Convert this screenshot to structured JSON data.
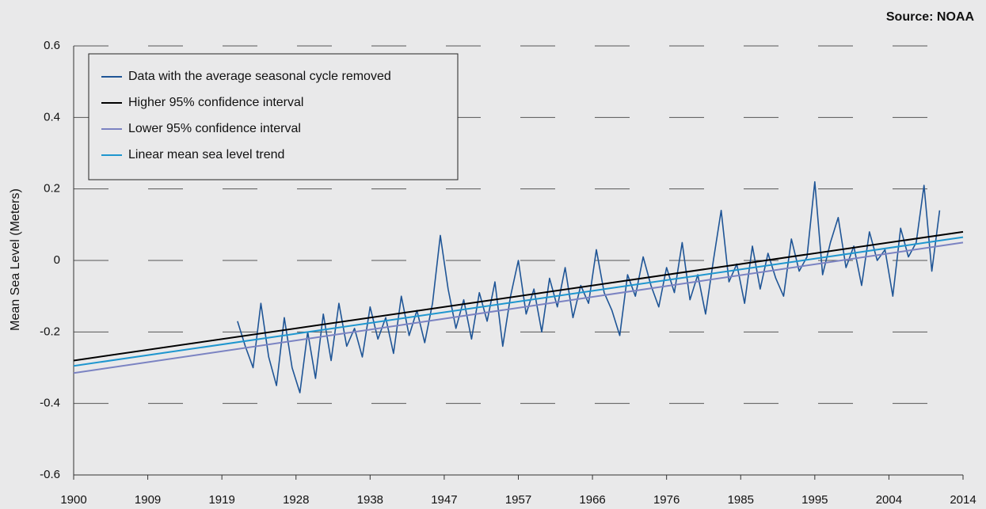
{
  "chart_data": {
    "type": "line",
    "source": "Source:  NOAA",
    "y_label": "Mean Sea Level (Meters)",
    "xlim": [
      1900,
      2014
    ],
    "xticks": [
      1900,
      {
        "value": 1909.5,
        "label": "1909"
      },
      1919,
      {
        "value": 1928.5,
        "label": "1928"
      },
      1938,
      {
        "value": 1947.5,
        "label": "1947"
      },
      1957,
      {
        "value": 1966.5,
        "label": "1966"
      },
      1976,
      {
        "value": 1985.5,
        "label": "1985"
      },
      1995,
      {
        "value": 2004.5,
        "label": "2004"
      },
      2014
    ],
    "ylim": [
      -0.6,
      0.6
    ],
    "yticks": [
      -0.6,
      -0.4,
      -0.2,
      0,
      0.2,
      0.4,
      0.6
    ],
    "grid": true,
    "legend": "upper left",
    "series": [
      {
        "name": "Data with the average seasonal cycle removed",
        "color": "#1f5596",
        "x": [
          1921,
          1922,
          1923,
          1924,
          1925,
          1926,
          1927,
          1928,
          1929,
          1930,
          1931,
          1932,
          1933,
          1934,
          1935,
          1936,
          1937,
          1938,
          1939,
          1940,
          1941,
          1942,
          1943,
          1944,
          1945,
          1946,
          1947,
          1948,
          1949,
          1950,
          1951,
          1952,
          1953,
          1954,
          1955,
          1956,
          1957,
          1958,
          1959,
          1960,
          1961,
          1962,
          1963,
          1964,
          1965,
          1966,
          1967,
          1968,
          1969,
          1970,
          1971,
          1972,
          1973,
          1974,
          1975,
          1976,
          1977,
          1978,
          1979,
          1980,
          1981,
          1982,
          1983,
          1984,
          1985,
          1986,
          1987,
          1988,
          1989,
          1990,
          1991,
          1992,
          1993,
          1994,
          1995,
          1996,
          1997,
          1998,
          1999,
          2000,
          2001,
          2002,
          2003,
          2004,
          2005,
          2006,
          2007,
          2008,
          2009,
          2010,
          2011
        ],
        "values": [
          -0.17,
          -0.24,
          -0.3,
          -0.12,
          -0.27,
          -0.35,
          -0.16,
          -0.3,
          -0.37,
          -0.2,
          -0.33,
          -0.15,
          -0.28,
          -0.12,
          -0.24,
          -0.19,
          -0.27,
          -0.13,
          -0.22,
          -0.16,
          -0.26,
          -0.1,
          -0.21,
          -0.14,
          -0.23,
          -0.12,
          0.07,
          -0.08,
          -0.19,
          -0.11,
          -0.22,
          -0.09,
          -0.17,
          -0.06,
          -0.24,
          -0.1,
          0.0,
          -0.15,
          -0.08,
          -0.2,
          -0.05,
          -0.13,
          -0.02,
          -0.16,
          -0.07,
          -0.12,
          0.03,
          -0.09,
          -0.14,
          -0.21,
          -0.04,
          -0.1,
          0.01,
          -0.07,
          -0.13,
          -0.02,
          -0.09,
          0.05,
          -0.11,
          -0.04,
          -0.15,
          0.0,
          0.14,
          -0.06,
          -0.01,
          -0.12,
          0.04,
          -0.08,
          0.02,
          -0.05,
          -0.1,
          0.06,
          -0.03,
          0.01,
          0.22,
          -0.04,
          0.05,
          0.12,
          -0.02,
          0.04,
          -0.07,
          0.08,
          0.0,
          0.03,
          -0.1,
          0.09,
          0.01,
          0.05,
          0.21,
          -0.03,
          0.14
        ]
      },
      {
        "name": "Higher 95% confidence interval",
        "color": "#000000",
        "x": [
          1900,
          2014
        ],
        "values": [
          -0.28,
          0.08
        ]
      },
      {
        "name": "Lower 95% confidence interval",
        "color": "#7b83c2",
        "x": [
          1900,
          2014
        ],
        "values": [
          -0.315,
          0.05
        ]
      },
      {
        "name": "Linear mean sea level trend",
        "color": "#1e96cf",
        "x": [
          1900,
          2014
        ],
        "values": [
          -0.295,
          0.065
        ]
      }
    ]
  }
}
